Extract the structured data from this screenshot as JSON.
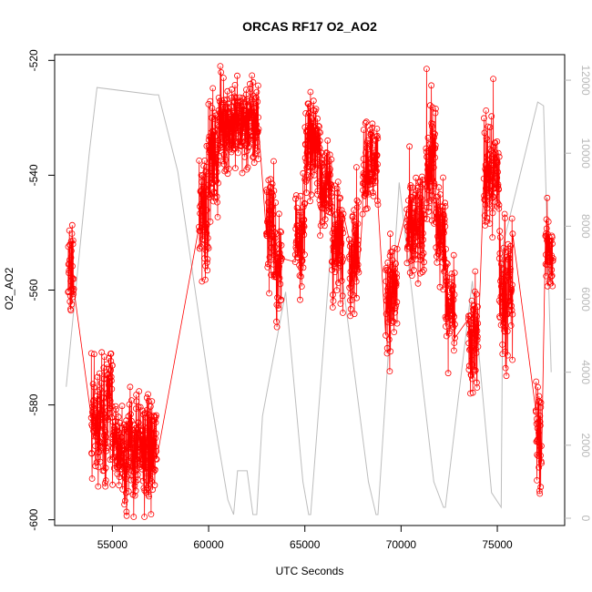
{
  "chart_data": {
    "type": "scatter",
    "title": "ORCAS RF17 O2_AO2",
    "xlabel": "UTC Seconds",
    "ylabel": "O2_AO2",
    "xlim": [
      52000,
      78500
    ],
    "ylim": [
      -601,
      -519
    ],
    "y2lim": [
      -200,
      12700
    ],
    "x_ticks": [
      55000,
      60000,
      65000,
      70000,
      75000
    ],
    "y_ticks": [
      -600,
      -580,
      -560,
      -540,
      -520
    ],
    "y2_ticks": [
      0,
      2000,
      4000,
      6000,
      8000,
      10000,
      12000
    ],
    "grid": false,
    "legend": "none",
    "colors": {
      "o2": "#ff0000",
      "altitude": "#bdbdbd",
      "axes": "#000000"
    },
    "series": [
      {
        "role": "O2_AO2 (left axis, red points and line)",
        "segments": [
          [
            52700,
            53000,
            -557,
            4
          ],
          [
            53900,
            54700,
            -583,
            6
          ],
          [
            54700,
            55000,
            -578,
            5
          ],
          [
            55000,
            55500,
            -587,
            4
          ],
          [
            55500,
            57300,
            -588,
            5
          ],
          [
            59500,
            60000,
            -545,
            6
          ],
          [
            60000,
            60500,
            -537,
            5
          ],
          [
            60500,
            62600,
            -531,
            4
          ],
          [
            63000,
            63400,
            -548,
            5
          ],
          [
            63400,
            63800,
            -556,
            5
          ],
          [
            64500,
            65000,
            -550,
            5
          ],
          [
            65000,
            65800,
            -535,
            4
          ],
          [
            65800,
            66400,
            -542,
            4
          ],
          [
            66400,
            67000,
            -552,
            5
          ],
          [
            67300,
            67800,
            -553,
            5
          ],
          [
            68000,
            68800,
            -538,
            4
          ],
          [
            69200,
            69800,
            -560,
            5
          ],
          [
            70300,
            71200,
            -550,
            5
          ],
          [
            71300,
            71800,
            -537,
            6
          ],
          [
            71800,
            72300,
            -550,
            5
          ],
          [
            72300,
            72800,
            -562,
            4
          ],
          [
            73500,
            74000,
            -568,
            5
          ],
          [
            74300,
            75100,
            -540,
            6
          ],
          [
            75100,
            75800,
            -560,
            6
          ],
          [
            77000,
            77300,
            -585,
            5
          ],
          [
            77500,
            77900,
            -553,
            4
          ]
        ]
      },
      {
        "role": "altitude (right axis, grey line)",
        "x": [
          52600,
          53800,
          54200,
          57200,
          57400,
          58400,
          60200,
          61000,
          61300,
          61500,
          62000,
          62300,
          62500,
          62800,
          64000,
          64900,
          65200,
          65300,
          66500,
          68300,
          68700,
          68800,
          69900,
          71700,
          72200,
          72300,
          73700,
          74700,
          75200,
          75300,
          77100,
          77400,
          77800
        ],
        "y": [
          3600,
          10000,
          11800,
          11600,
          11600,
          9500,
          3000,
          500,
          100,
          1300,
          1300,
          100,
          100,
          2800,
          6200,
          1000,
          100,
          100,
          8400,
          1000,
          100,
          100,
          9200,
          1000,
          300,
          300,
          6500,
          700,
          300,
          7500,
          11400,
          11300,
          4000
        ]
      }
    ]
  }
}
